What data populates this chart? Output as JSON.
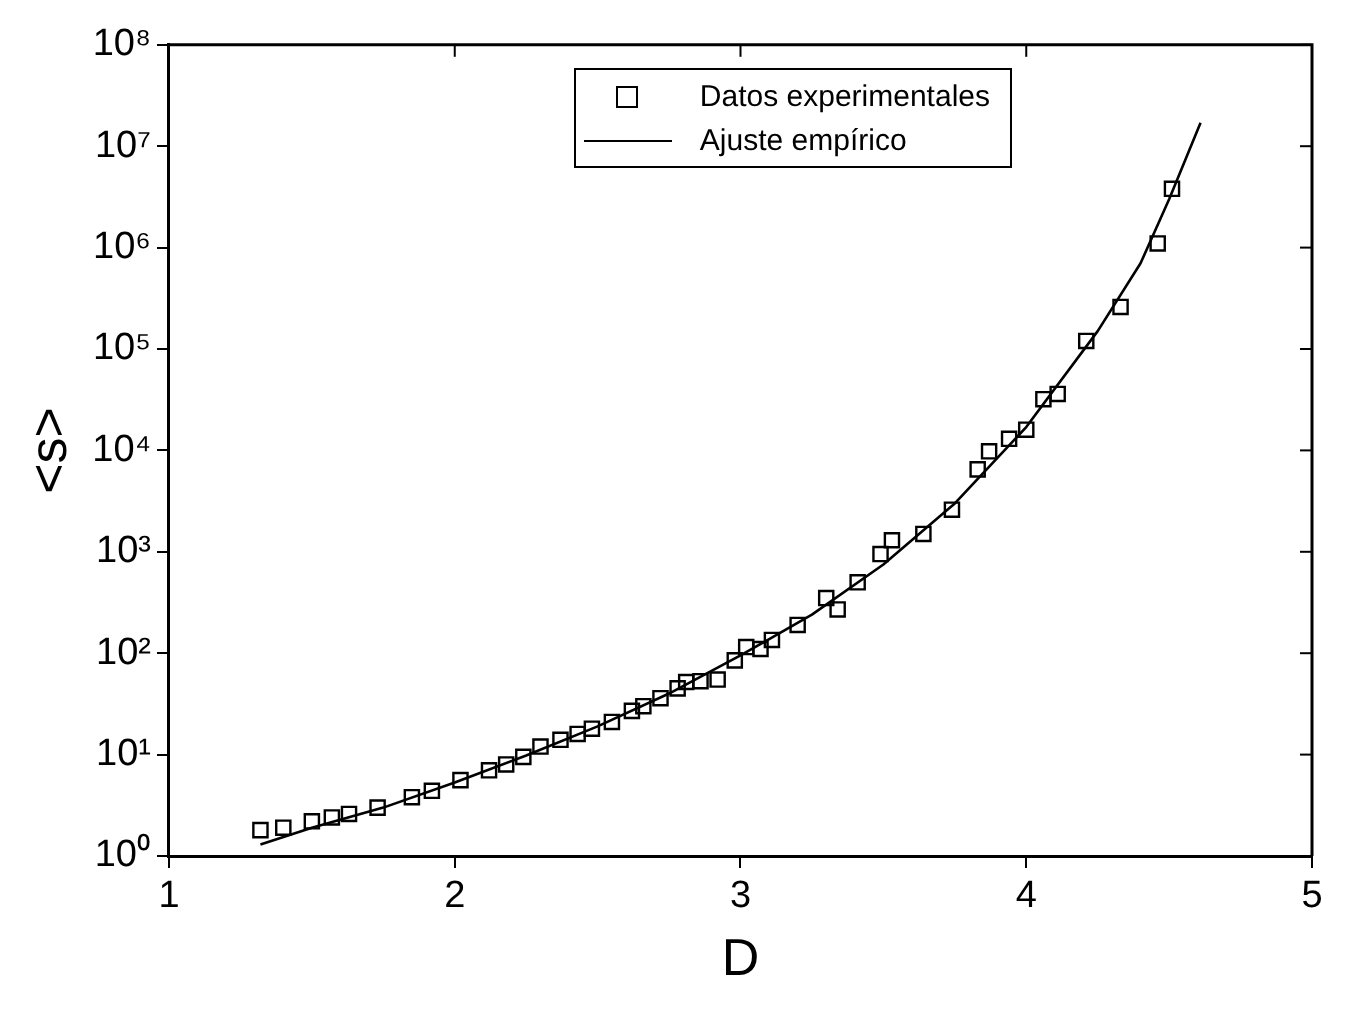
{
  "chart_data": {
    "type": "scatter",
    "xlabel": "D",
    "ylabel": "<s>",
    "log": "y",
    "xlim": [
      1,
      5
    ],
    "xticks": [
      1,
      2,
      3,
      4,
      5
    ],
    "ylim": [
      1,
      100000000
    ],
    "yticks": [
      {
        "value": 1,
        "label": "10⁰"
      },
      {
        "value": 10,
        "label": "10¹"
      },
      {
        "value": 100,
        "label": "10²"
      },
      {
        "value": 1000,
        "label": "10³"
      },
      {
        "value": 10000,
        "label": "10⁴"
      },
      {
        "value": 100000,
        "label": "10⁵"
      },
      {
        "value": 1000000,
        "label": "10⁶"
      },
      {
        "value": 10000000,
        "label": "10⁷"
      },
      {
        "value": 100000000,
        "label": "10⁸"
      }
    ],
    "grid": false,
    "legend": "top right",
    "series": [
      {
        "name": "Datos experimentales",
        "type": "scatter",
        "marker": "square",
        "color": "#000000",
        "x": [
          1.32,
          1.4,
          1.5,
          1.57,
          1.63,
          1.73,
          1.85,
          1.92,
          2.02,
          2.12,
          2.18,
          2.24,
          2.3,
          2.37,
          2.43,
          2.48,
          2.55,
          2.62,
          2.66,
          2.72,
          2.78,
          2.81,
          2.86,
          2.92,
          2.98,
          3.02,
          3.07,
          3.11,
          3.2,
          3.3,
          3.34,
          3.41,
          3.49,
          3.53,
          3.64,
          3.74,
          3.83,
          3.87,
          3.94,
          4.0,
          4.06,
          4.11,
          4.21,
          4.33,
          4.46,
          4.51
        ],
        "values": [
          1.8,
          1.9,
          2.2,
          2.4,
          2.6,
          3.0,
          3.8,
          4.4,
          5.6,
          7.0,
          8.0,
          9.5,
          12,
          14,
          16,
          18,
          21,
          27,
          30,
          36,
          45,
          52,
          53,
          55,
          85,
          115,
          110,
          135,
          190,
          350,
          270,
          500,
          950,
          1300,
          1500,
          2600,
          6500,
          9800,
          13000,
          16000,
          32000,
          36000,
          120000,
          260000,
          1100000,
          3800000
        ]
      },
      {
        "name": "Ajuste empírico",
        "type": "line",
        "marker": "none",
        "line_style": "solid",
        "color": "#000000",
        "x": [
          1.32,
          1.5,
          1.75,
          2.0,
          2.25,
          2.5,
          2.75,
          3.0,
          3.25,
          3.5,
          3.75,
          4.0,
          4.25,
          4.4,
          4.5,
          4.61
        ],
        "values": [
          1.3,
          1.9,
          3.0,
          5.3,
          9.8,
          19,
          40,
          95,
          240,
          750,
          3000,
          17000,
          150000,
          700000,
          3000000,
          17000000
        ]
      }
    ]
  }
}
